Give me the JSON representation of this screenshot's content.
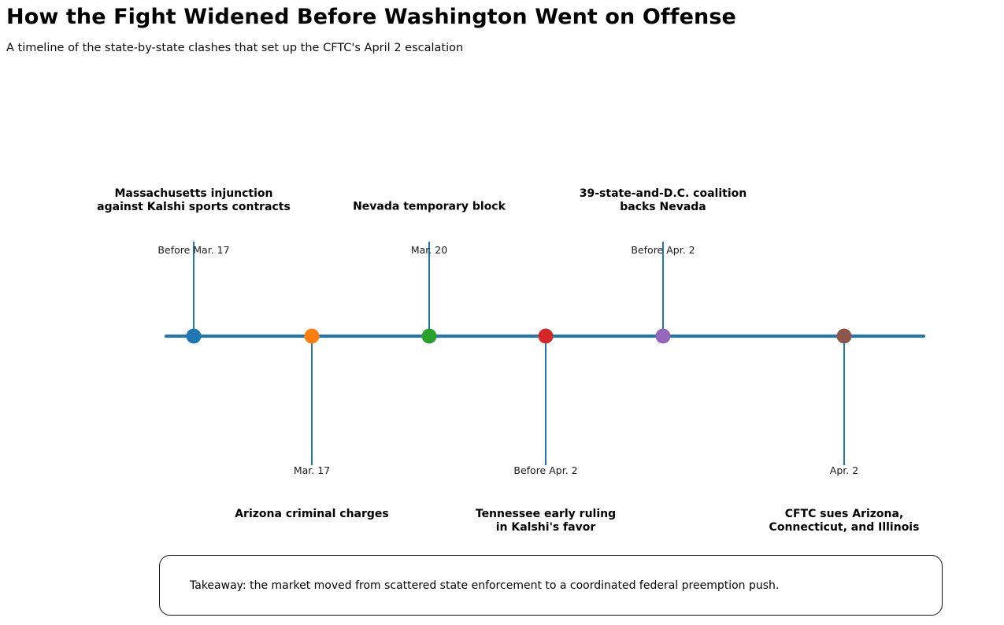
{
  "header": {
    "title": "How the Fight Widened Before Washington Went on Offense",
    "subtitle": "A timeline of the state-by-state clashes that set up the CFTC's April 2 escalation"
  },
  "chart_data": {
    "type": "timeline",
    "title": "How the Fight Widened Before Washington Went on Offense",
    "subtitle": "A timeline of the state-by-state clashes that set up the CFTC's April 2 escalation",
    "axis": {
      "orientation": "horizontal",
      "color": "#1f77b4",
      "grid": false
    },
    "events": [
      {
        "label": "Massachusetts injunction\nagainst Kalshi sports contracts",
        "date": "Before Mar. 17",
        "side": "above",
        "color": "#1f77b4"
      },
      {
        "label": "Arizona criminal charges",
        "date": "Mar. 17",
        "side": "below",
        "color": "#ff7f0e"
      },
      {
        "label": "Nevada temporary block",
        "date": "Mar. 20",
        "side": "above",
        "color": "#2ca02c"
      },
      {
        "label": "Tennessee early ruling\nin Kalshi's favor",
        "date": "Before Apr. 2",
        "side": "below",
        "color": "#d62728"
      },
      {
        "label": "39-state-and-D.C. coalition\nbacks Nevada",
        "date": "Before Apr. 2",
        "side": "above",
        "color": "#9467bd"
      },
      {
        "label": "CFTC sues Arizona,\nConnecticut, and Illinois",
        "date": "Apr. 2",
        "side": "below",
        "color": "#8c564b"
      }
    ],
    "annotation": "Takeaway: the market moved from scattered state enforcement to a coordinated federal preemption push."
  }
}
